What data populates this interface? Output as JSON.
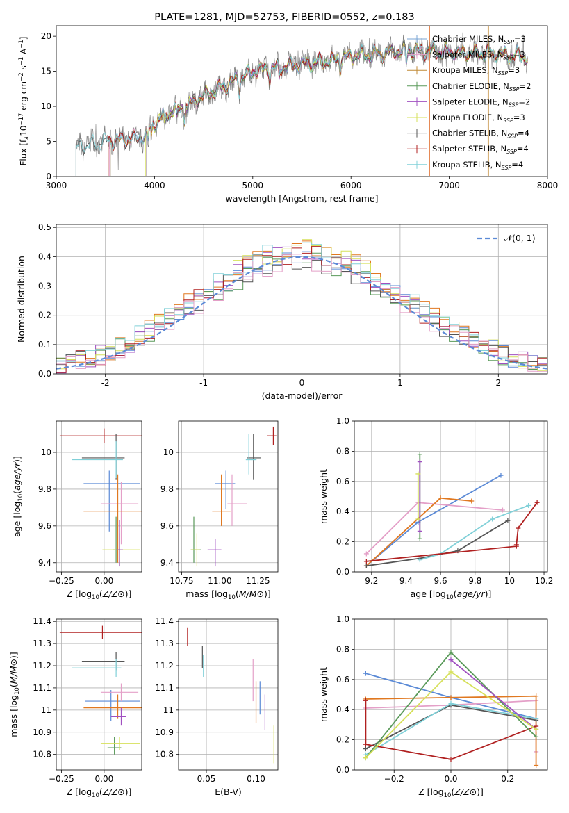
{
  "chart_data": [
    {
      "id": "spectrum",
      "type": "line",
      "title": "PLATE=1281, MJD=52753, FIBERID=0552, z=0.183",
      "xlabel": "wavelength [Angstrom, rest frame]",
      "ylabel_parts": [
        "Flux [f",
        "λ",
        "10",
        "−17",
        " erg cm",
        "−2",
        " s",
        "−1",
        " A",
        "−1",
        "]"
      ],
      "xlim": [
        3000,
        8000
      ],
      "ylim": [
        0,
        21.5
      ],
      "xticks": [
        3000,
        4000,
        5000,
        6000,
        7000,
        8000
      ],
      "yticks": [
        0,
        5,
        10,
        15,
        20
      ],
      "grid": false,
      "legend_position": "top-right",
      "observed_color": "#808080",
      "continuum_shape": [
        [
          3200,
          4.2
        ],
        [
          3500,
          5.0
        ],
        [
          3900,
          5.6
        ],
        [
          3950,
          7.0
        ],
        [
          4100,
          8.8
        ],
        [
          4300,
          10.0
        ],
        [
          4500,
          11.5
        ],
        [
          4800,
          13.5
        ],
        [
          5000,
          15.0
        ],
        [
          5200,
          15.5
        ],
        [
          5500,
          16.0
        ],
        [
          5800,
          16.5
        ],
        [
          6000,
          17.2
        ],
        [
          6300,
          17.5
        ],
        [
          6600,
          18.0
        ],
        [
          6900,
          17.8
        ],
        [
          7200,
          17.6
        ],
        [
          7500,
          17.5
        ],
        [
          7700,
          17.2
        ],
        [
          7800,
          17.0
        ]
      ],
      "series": [
        {
          "name": "Chabrier MILES, N",
          "sub": "SSP",
          "n": "=3",
          "color": "#7aa6d6",
          "start": 3550
        },
        {
          "name": "Salpeter MILES, N",
          "sub": "SSP",
          "n": "=3",
          "color": "#e4a0c8",
          "start": 3540
        },
        {
          "name": "Kroupa MILES, N",
          "sub": "SSP",
          "n": "=3",
          "color": "#c08a36",
          "start": 3550
        },
        {
          "name": "Chabrier ELODIE, N",
          "sub": "SSP",
          "n": "=2",
          "color": "#5a9a5a",
          "start": 3920
        },
        {
          "name": "Salpeter ELODIE, N",
          "sub": "SSP",
          "n": "=2",
          "color": "#a050c0",
          "start": 3920
        },
        {
          "name": "Kroupa ELODIE, N",
          "sub": "SSP",
          "n": "=3",
          "color": "#d6e05a",
          "start": 3910
        },
        {
          "name": "Chabrier STELIB, N",
          "sub": "SSP",
          "n": "=4",
          "color": "#555555",
          "start": 3200
        },
        {
          "name": "Salpeter STELIB, N",
          "sub": "SSP",
          "n": "=4",
          "color": "#b02020",
          "start": 3530
        },
        {
          "name": "Kroupa STELIB, N",
          "sub": "SSP",
          "n": "=4",
          "color": "#80d0d8",
          "start": 3200
        }
      ],
      "vertical_lines": [
        {
          "x": 6795,
          "color": "#c08a36"
        },
        {
          "x": 6800,
          "color": "#e07030"
        },
        {
          "x": 7395,
          "color": "#e07030"
        },
        {
          "x": 7400,
          "color": "#c08a36"
        }
      ]
    },
    {
      "id": "residuals",
      "type": "line",
      "xlabel": "(data-model)/error",
      "ylabel": "Normed distribution",
      "xlim": [
        -2.5,
        2.5
      ],
      "ylim": [
        0,
        0.51
      ],
      "xticks": [
        -2,
        -1,
        0,
        1,
        2
      ],
      "yticks": [
        0.0,
        0.1,
        0.2,
        0.3,
        0.4,
        0.5
      ],
      "ytick_labels": [
        "0.0",
        "0.1",
        "0.2",
        "0.3",
        "0.4",
        "0.5"
      ],
      "grid": true,
      "legend_position": "top-right",
      "legend": "𝒩(0, 1)",
      "normal_color": "#5b8ad6",
      "bin_width": 0.1,
      "hist_colors": [
        "#5b8ad6",
        "#e07820",
        "#5a9a5a",
        "#a050c0",
        "#d6e05a",
        "#555555",
        "#b02020",
        "#80d0d8",
        "#e4a0c8"
      ]
    },
    {
      "id": "age-vs-Z",
      "type": "scatter",
      "xlabel": "Z [log10(Z/Z⊙)]",
      "ylabel": "age  [log10(age/yr)]",
      "xlim": [
        -0.28,
        0.22
      ],
      "ylim": [
        9.35,
        10.17
      ],
      "xticks": [
        -0.25,
        0.0
      ],
      "xtick_labels": [
        "−0.25",
        "0.00"
      ],
      "yticks": [
        9.4,
        9.6,
        9.8,
        10.0
      ],
      "grid": true,
      "points": [
        {
          "x": 0.0,
          "y": 10.09,
          "xerr": [
            0.26,
            0.35
          ],
          "yerr": [
            0.04,
            0.04
          ],
          "color": "#b02020"
        },
        {
          "x": 0.07,
          "y": 9.97,
          "xerr": [
            0.2,
            0.05
          ],
          "yerr": [
            0.12,
            0.13
          ],
          "color": "#555555"
        },
        {
          "x": 0.07,
          "y": 9.96,
          "xerr": [
            0.26,
            0.04
          ],
          "yerr": [
            0.1,
            0.1
          ],
          "color": "#80d0d8"
        },
        {
          "x": 0.03,
          "y": 9.83,
          "xerr": [
            0.15,
            0.18
          ],
          "yerr": [
            0.26,
            0.07
          ],
          "color": "#5b8ad6"
        },
        {
          "x": 0.1,
          "y": 9.72,
          "xerr": [
            0.12,
            0.1
          ],
          "yerr": [
            0.22,
            0.12
          ],
          "color": "#e4a0c8"
        },
        {
          "x": 0.08,
          "y": 9.68,
          "xerr": [
            0.2,
            0.14
          ],
          "yerr": [
            0.28,
            0.2
          ],
          "color": "#e07820"
        },
        {
          "x": 0.07,
          "y": 9.47,
          "xerr": [
            0.02,
            0.02
          ],
          "yerr": [
            0.07,
            0.18
          ],
          "color": "#5a9a5a"
        },
        {
          "x": 0.09,
          "y": 9.47,
          "xerr": [
            0.1,
            0.12
          ],
          "yerr": [
            0.09,
            0.09
          ],
          "color": "#d6e05a"
        },
        {
          "x": 0.09,
          "y": 9.47,
          "xerr": [
            0.02,
            0.02
          ],
          "yerr": [
            0.09,
            0.16
          ],
          "color": "#a050c0"
        }
      ]
    },
    {
      "id": "age-vs-mass",
      "type": "scatter",
      "xlabel": "mass [log10(M/M⊙)]",
      "xlim": [
        10.73,
        11.38
      ],
      "ylim": [
        9.35,
        10.17
      ],
      "xticks": [
        10.75,
        11.0,
        11.25
      ],
      "xtick_labels": [
        "10.75",
        "11.00",
        "11.25"
      ],
      "yticks": [
        9.4,
        9.6,
        9.8,
        10.0
      ],
      "grid": true,
      "points": [
        {
          "x": 11.35,
          "y": 10.09,
          "xerr": [
            0.04,
            0.02
          ],
          "yerr": [
            0.05,
            0.05
          ],
          "color": "#b02020"
        },
        {
          "x": 11.22,
          "y": 9.97,
          "xerr": [
            0.04,
            0.05
          ],
          "yerr": [
            0.12,
            0.13
          ],
          "color": "#555555"
        },
        {
          "x": 11.19,
          "y": 9.96,
          "xerr": [
            0.02,
            0.05
          ],
          "yerr": [
            0.08,
            0.14
          ],
          "color": "#80d0d8"
        },
        {
          "x": 11.04,
          "y": 9.83,
          "xerr": [
            0.07,
            0.06
          ],
          "yerr": [
            0.14,
            0.07
          ],
          "color": "#5b8ad6"
        },
        {
          "x": 11.08,
          "y": 9.72,
          "xerr": [
            0.03,
            0.1
          ],
          "yerr": [
            0.12,
            0.16
          ],
          "color": "#e4a0c8"
        },
        {
          "x": 11.01,
          "y": 9.68,
          "xerr": [
            0.06,
            0.06
          ],
          "yerr": [
            0.08,
            0.2
          ],
          "color": "#e07820"
        },
        {
          "x": 10.83,
          "y": 9.47,
          "xerr": [
            0.02,
            0.05
          ],
          "yerr": [
            0.07,
            0.18
          ],
          "color": "#5a9a5a"
        },
        {
          "x": 10.85,
          "y": 9.47,
          "xerr": [
            0.04,
            0.02
          ],
          "yerr": [
            0.09,
            0.09
          ],
          "color": "#d6e05a"
        },
        {
          "x": 10.97,
          "y": 9.47,
          "xerr": [
            0.05,
            0.04
          ],
          "yerr": [
            0.09,
            0.06
          ],
          "color": "#a050c0"
        }
      ]
    },
    {
      "id": "mass-weight-vs-age",
      "type": "line",
      "xlabel": "age  [log10(age/yr)]",
      "ylabel": "mass weight",
      "xlim": [
        9.1,
        10.22
      ],
      "ylim": [
        0.0,
        1.0
      ],
      "xticks": [
        9.2,
        9.4,
        9.6,
        9.8,
        10.0,
        10.2
      ],
      "yticks": [
        0.0,
        0.2,
        0.4,
        0.6,
        0.8,
        1.0
      ],
      "ytick_labels": [
        "0.0",
        "0.2",
        "0.4",
        "0.6",
        "0.8",
        "1.0"
      ],
      "grid": true,
      "series": [
        {
          "color": "#5b8ad6",
          "x": [
            9.17,
            9.47,
            9.95
          ],
          "y": [
            0.04,
            0.33,
            0.64
          ]
        },
        {
          "color": "#e4a0c8",
          "x": [
            9.17,
            9.47,
            9.96
          ],
          "y": [
            0.12,
            0.46,
            0.41
          ]
        },
        {
          "color": "#e07820",
          "x": [
            9.17,
            9.6,
            9.78
          ],
          "y": [
            0.04,
            0.49,
            0.47
          ]
        },
        {
          "color": "#555555",
          "x": [
            9.17,
            9.48,
            9.7,
            9.99
          ],
          "y": [
            0.04,
            0.09,
            0.14,
            0.34
          ]
        },
        {
          "color": "#80d0d8",
          "x": [
            9.48,
            9.6,
            9.9,
            10.11
          ],
          "y": [
            0.08,
            0.12,
            0.35,
            0.44
          ]
        },
        {
          "color": "#b02020",
          "x": [
            9.17,
            10.04,
            10.04,
            10.05,
            10.16
          ],
          "y": [
            0.07,
            0.17,
            0.18,
            0.29,
            0.46
          ]
        },
        {
          "color": "#5a9a5a",
          "x": [
            9.48,
            9.48
          ],
          "y": [
            0.22,
            0.78
          ]
        },
        {
          "color": "#a050c0",
          "x": [
            9.48,
            9.48
          ],
          "y": [
            0.27,
            0.73
          ]
        },
        {
          "color": "#d6e05a",
          "x": [
            9.47,
            9.47
          ],
          "y": [
            0.35,
            0.65
          ]
        }
      ]
    },
    {
      "id": "mass-vs-Z",
      "type": "scatter",
      "xlabel": "Z [log10(Z/Z⊙)]",
      "ylabel": "mass [log10(M/M⊙)]",
      "xlim": [
        -0.28,
        0.22
      ],
      "ylim": [
        10.73,
        11.41
      ],
      "xticks": [
        -0.25,
        0.0
      ],
      "xtick_labels": [
        "−0.25",
        "0.00"
      ],
      "yticks": [
        10.8,
        10.9,
        11.0,
        11.1,
        11.2,
        11.3,
        11.4
      ],
      "grid": true,
      "points": [
        {
          "x": -0.01,
          "y": 11.35,
          "xerr": [
            0.25,
            0.36
          ],
          "yerr": [
            0.03,
            0.03
          ],
          "color": "#b02020"
        },
        {
          "x": 0.07,
          "y": 11.22,
          "xerr": [
            0.2,
            0.05
          ],
          "yerr": [
            0.04,
            0.04
          ],
          "color": "#555555"
        },
        {
          "x": 0.07,
          "y": 11.19,
          "xerr": [
            0.26,
            0.03
          ],
          "yerr": [
            0.04,
            0.04
          ],
          "color": "#80d0d8"
        },
        {
          "x": 0.04,
          "y": 11.04,
          "xerr": [
            0.15,
            0.17
          ],
          "yerr": [
            0.09,
            0.05
          ],
          "color": "#5b8ad6"
        },
        {
          "x": 0.1,
          "y": 11.08,
          "xerr": [
            0.12,
            0.1
          ],
          "yerr": [
            0.04,
            0.04
          ],
          "color": "#e4a0c8"
        },
        {
          "x": 0.08,
          "y": 11.01,
          "xerr": [
            0.2,
            0.14
          ],
          "yerr": [
            0.05,
            0.06
          ],
          "color": "#e07820"
        },
        {
          "x": 0.06,
          "y": 10.83,
          "xerr": [
            0.04,
            0.04
          ],
          "yerr": [
            0.03,
            0.05
          ],
          "color": "#5a9a5a"
        },
        {
          "x": 0.09,
          "y": 10.85,
          "xerr": [
            0.11,
            0.12
          ],
          "yerr": [
            0.03,
            0.03
          ],
          "color": "#d6e05a"
        },
        {
          "x": 0.1,
          "y": 10.97,
          "xerr": [
            0.06,
            0.03
          ],
          "yerr": [
            0.04,
            0.04
          ],
          "color": "#a050c0"
        }
      ]
    },
    {
      "id": "mass-vs-ebv",
      "type": "scatter",
      "xlabel": "E(B-V)",
      "xlim": [
        0.022,
        0.122
      ],
      "ylim": [
        10.73,
        11.41
      ],
      "xticks": [
        0.05,
        0.1
      ],
      "xtick_labels": [
        "0.05",
        "0.10"
      ],
      "yticks": [
        10.8,
        10.9,
        11.0,
        11.1,
        11.2,
        11.3,
        11.4
      ],
      "grid": true,
      "points": [
        {
          "x": 0.031,
          "y": 11.33,
          "xerr": [
            0.0,
            0.0
          ],
          "yerr": [
            0.04,
            0.04
          ],
          "color": "#b02020"
        },
        {
          "x": 0.046,
          "y": 11.24,
          "xerr": [
            0.0,
            0.0
          ],
          "yerr": [
            0.05,
            0.05
          ],
          "color": "#555555"
        },
        {
          "x": 0.047,
          "y": 11.2,
          "xerr": [
            0.0,
            0.0
          ],
          "yerr": [
            0.05,
            0.05
          ],
          "color": "#80d0d8"
        },
        {
          "x": 0.097,
          "y": 11.13,
          "xerr": [
            0.0,
            0.0
          ],
          "yerr": [
            0.09,
            0.1
          ],
          "color": "#e4a0c8"
        },
        {
          "x": 0.1,
          "y": 11.03,
          "xerr": [
            0.0,
            0.0
          ],
          "yerr": [
            0.09,
            0.1
          ],
          "color": "#e07820"
        },
        {
          "x": 0.104,
          "y": 11.05,
          "xerr": [
            0.0,
            0.0
          ],
          "yerr": [
            0.07,
            0.08
          ],
          "color": "#5b8ad6"
        },
        {
          "x": 0.109,
          "y": 10.97,
          "xerr": [
            0.0,
            0.0
          ],
          "yerr": [
            0.06,
            0.1
          ],
          "color": "#a050c0"
        },
        {
          "x": 0.118,
          "y": 10.84,
          "xerr": [
            0.0,
            0.0
          ],
          "yerr": [
            0.08,
            0.09
          ],
          "color": "#d6e05a"
        }
      ]
    },
    {
      "id": "mass-weight-vs-Z",
      "type": "line",
      "xlabel": "Z [log10(Z/Z⊙)]",
      "ylabel": "mass weight",
      "xlim": [
        -0.34,
        0.34
      ],
      "ylim": [
        0.0,
        1.0
      ],
      "xticks": [
        -0.2,
        0.0,
        0.2
      ],
      "xtick_labels": [
        "−0.2",
        "0.0",
        "0.2"
      ],
      "yticks": [
        0.0,
        0.2,
        0.4,
        0.6,
        0.8,
        1.0
      ],
      "ytick_labels": [
        "0.0",
        "0.2",
        "0.4",
        "0.6",
        "0.8",
        "1.0"
      ],
      "grid": true,
      "series": [
        {
          "color": "#5b8ad6",
          "x": [
            -0.3,
            0.0,
            0.3
          ],
          "y": [
            0.64,
            0.48,
            0.34
          ]
        },
        {
          "color": "#e4a0c8",
          "x": [
            -0.3,
            0.0,
            0.3,
            0.3
          ],
          "y": [
            0.41,
            0.43,
            0.46,
            0.12
          ]
        },
        {
          "color": "#e07820",
          "x": [
            -0.3,
            0.0,
            0.3,
            0.3
          ],
          "y": [
            0.47,
            0.48,
            0.49,
            0.03
          ]
        },
        {
          "color": "#555555",
          "x": [
            -0.3,
            0.0,
            0.3
          ],
          "y": [
            0.14,
            0.43,
            0.33
          ]
        },
        {
          "color": "#80d0d8",
          "x": [
            -0.3,
            0.0,
            0.3
          ],
          "y": [
            0.1,
            0.44,
            0.34
          ]
        },
        {
          "color": "#b02020",
          "x": [
            -0.3,
            -0.3,
            0.0,
            0.3
          ],
          "y": [
            0.46,
            0.17,
            0.07,
            0.29
          ]
        },
        {
          "color": "#5a9a5a",
          "x": [
            -0.3,
            0.0,
            0.3
          ],
          "y": [
            0.08,
            0.78,
            0.22
          ]
        },
        {
          "color": "#a050c0",
          "x": [
            0.0,
            0.3
          ],
          "y": [
            0.73,
            0.27
          ]
        },
        {
          "color": "#d6e05a",
          "x": [
            -0.3,
            0.0,
            0.3
          ],
          "y": [
            0.08,
            0.65,
            0.27
          ]
        }
      ]
    }
  ]
}
